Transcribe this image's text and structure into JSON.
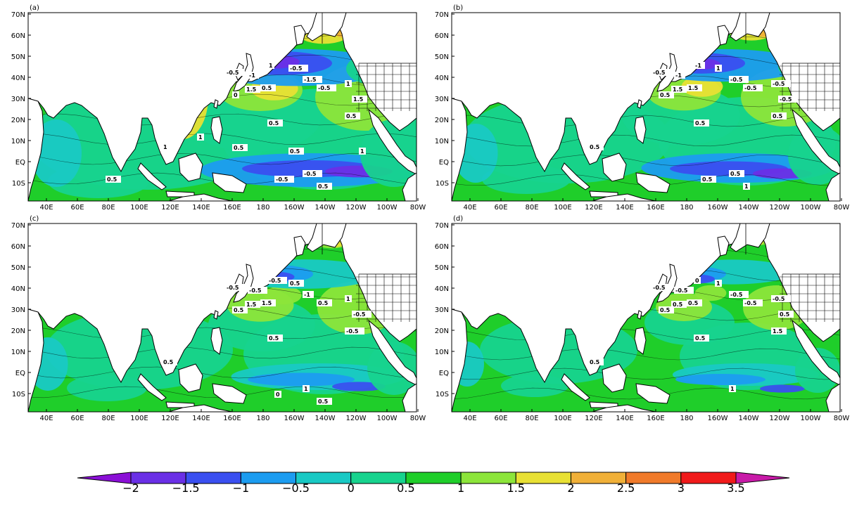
{
  "panels": [
    {
      "label": "(a)",
      "contour_labels": [
        "-0.5",
        "-1",
        "-1.5",
        "1",
        "1.5",
        "0.5",
        "0",
        "-0.5",
        "-0.5",
        "1",
        "1.5",
        "0.5",
        "0.5",
        "1",
        "-0.5",
        "-0.5",
        "0.5",
        "0.5",
        "0.5",
        "1",
        "0.5",
        "1"
      ]
    },
    {
      "label": "(b)",
      "contour_labels": [
        "-0.5",
        "-1",
        "-0.5",
        "-1",
        "1.5",
        "1.5",
        "0.5",
        "1",
        "-0.5",
        "-0.5",
        "-0.5",
        "0.5",
        "0.5",
        "0.5",
        "0.5",
        "0.5",
        "1"
      ]
    },
    {
      "label": "(c)",
      "contour_labels": [
        "-0.5",
        "-0.5",
        "-1",
        "-0.5",
        "1.5",
        "1.5",
        "0.5",
        "0.5",
        "0.5",
        "1",
        "-0.5",
        "-0.5",
        "0.5",
        "0.5",
        "1",
        "0",
        "0.5"
      ]
    },
    {
      "label": "(d)",
      "contour_labels": [
        "-0.5",
        "-0.5",
        "-0.5",
        "0",
        "0.5",
        "0.5",
        "0.5",
        "1",
        "-0.5",
        "-0.5",
        "0.5",
        "1.5",
        "0.5",
        "0.5",
        "1"
      ]
    }
  ],
  "axes": {
    "lat_ticks": [
      "70N",
      "60N",
      "50N",
      "40N",
      "30N",
      "20N",
      "10N",
      "EQ",
      "10S"
    ],
    "lon_ticks": [
      "40E",
      "60E",
      "80E",
      "100E",
      "120E",
      "140E",
      "160E",
      "180",
      "160W",
      "140W",
      "120W",
      "100W",
      "80W"
    ]
  },
  "colorbar": {
    "labels": [
      "−2",
      "−1.5",
      "−1",
      "−0.5",
      "0",
      "0.5",
      "1",
      "1.5",
      "2",
      "2.5",
      "3",
      "3.5"
    ],
    "colors": [
      "#8a0fd6",
      "#6a2fe6",
      "#3a4ff0",
      "#1c9cf0",
      "#19c9c4",
      "#17d38e",
      "#1fce2a",
      "#8ce53a",
      "#e8e034",
      "#f0b038",
      "#f07a2a",
      "#f01a1a",
      "#e81a8a",
      "#c81aa8"
    ]
  }
}
